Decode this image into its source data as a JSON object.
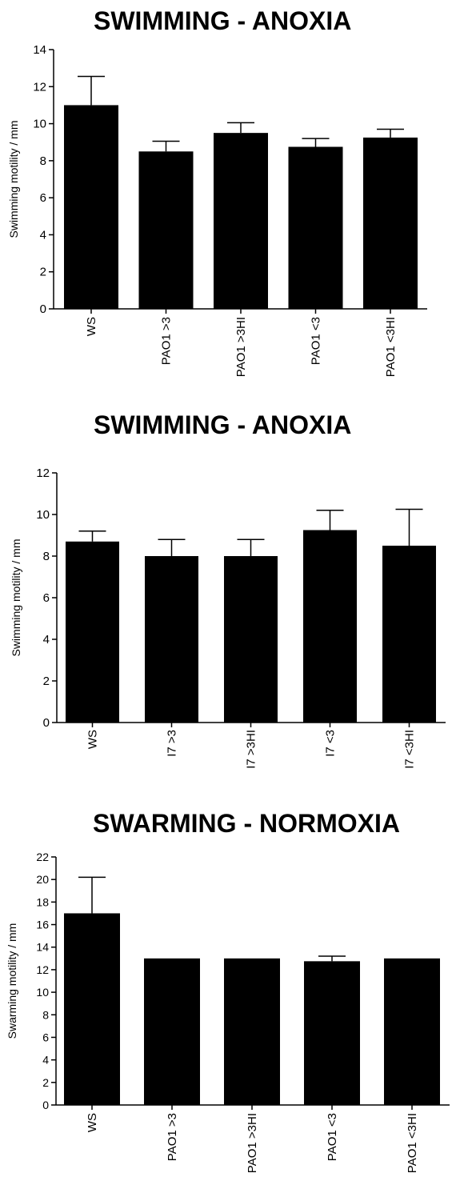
{
  "chart_data": [
    {
      "type": "bar",
      "title": "SWIMMING - ANOXIA",
      "ylabel": "Swimming motility / mm",
      "xlabel": "",
      "categories": [
        "WS",
        "PAO1 >3",
        "PAO1 >3HI",
        "PAO1 <3",
        "PAO1 <3HI"
      ],
      "values": [
        11.0,
        8.5,
        9.5,
        8.75,
        9.25
      ],
      "errors": [
        1.55,
        0.55,
        0.55,
        0.45,
        0.45
      ],
      "ylim": [
        0,
        14
      ],
      "yticks": [
        0,
        2,
        4,
        6,
        8,
        10,
        12,
        14
      ],
      "bar_color": "#000000",
      "grid": false,
      "legend": "none"
    },
    {
      "type": "bar",
      "title": "SWIMMING - ANOXIA",
      "ylabel": "Swimming motility / mm",
      "xlabel": "",
      "categories": [
        "WS",
        "I7 >3",
        "I7 >3HI",
        "I7 <3",
        "I7 <3HI"
      ],
      "values": [
        8.7,
        8.0,
        8.0,
        9.25,
        8.5
      ],
      "errors": [
        0.5,
        0.8,
        0.8,
        0.95,
        1.75
      ],
      "ylim": [
        0,
        12
      ],
      "yticks": [
        0,
        2,
        4,
        6,
        8,
        10,
        12
      ],
      "bar_color": "#000000",
      "grid": false,
      "legend": "none"
    },
    {
      "type": "bar",
      "title": "SWARMING - NORMOXIA",
      "ylabel": "Swarming motility / mm",
      "xlabel": "",
      "categories": [
        "WS",
        "PAO1 >3",
        "PAO1 >3HI",
        "PAO1 <3",
        "PAO1 <3HI"
      ],
      "values": [
        17.0,
        13.0,
        13.0,
        12.75,
        13.0
      ],
      "errors": [
        3.2,
        0,
        0,
        0.45,
        0
      ],
      "ylim": [
        0,
        22
      ],
      "yticks": [
        0,
        2,
        4,
        6,
        8,
        10,
        12,
        14,
        16,
        18,
        20,
        22
      ],
      "bar_color": "#000000",
      "grid": false,
      "legend": "none"
    }
  ]
}
